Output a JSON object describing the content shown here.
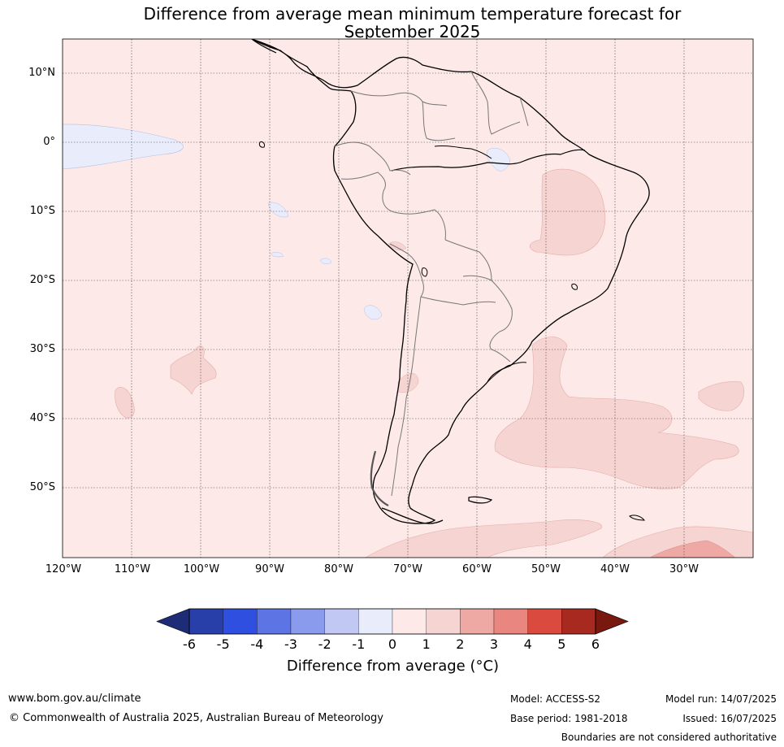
{
  "title_line1": "Difference from average mean minimum temperature forecast for",
  "title_line2": "September 2025",
  "lat_labels": [
    "10°N",
    "0°",
    "10°S",
    "20°S",
    "30°S",
    "40°S",
    "50°S"
  ],
  "lon_labels": [
    "120°W",
    "110°W",
    "100°W",
    "90°W",
    "80°W",
    "70°W",
    "60°W",
    "50°W",
    "40°W",
    "30°W"
  ],
  "colorbar": {
    "ticks": [
      "-6",
      "-5",
      "-4",
      "-3",
      "-2",
      "-1",
      "0",
      "1",
      "2",
      "3",
      "4",
      "5",
      "6"
    ],
    "colors": [
      "#283ea9",
      "#2f4fe0",
      "#5c74e4",
      "#8a9aec",
      "#c1c8f4",
      "#e9ecfb",
      "#fce9e8",
      "#f6d4d2",
      "#eea9a5",
      "#e98680",
      "#da4a3f",
      "#a8291f"
    ],
    "under_color": "#1e2c78",
    "over_color": "#78180f",
    "label": "Difference from average (°C)"
  },
  "map_colors": {
    "background": "#fce9e8",
    "warm_1_2": "#f6d4d2",
    "warm_2_3": "#eea9a5",
    "cool_-1_0": "#e9ecfb"
  },
  "footer": {
    "website": "www.bom.gov.au/climate",
    "copyright": "© Commonwealth of Australia 2025, Australian Bureau of Meteorology",
    "model": "Model: ACCESS-S2",
    "base_period": "Base period: 1981-2018",
    "model_run": "Model run: 14/07/2025",
    "issued": "Issued: 16/07/2025",
    "disclaimer": "Boundaries are not considered authoritative"
  }
}
